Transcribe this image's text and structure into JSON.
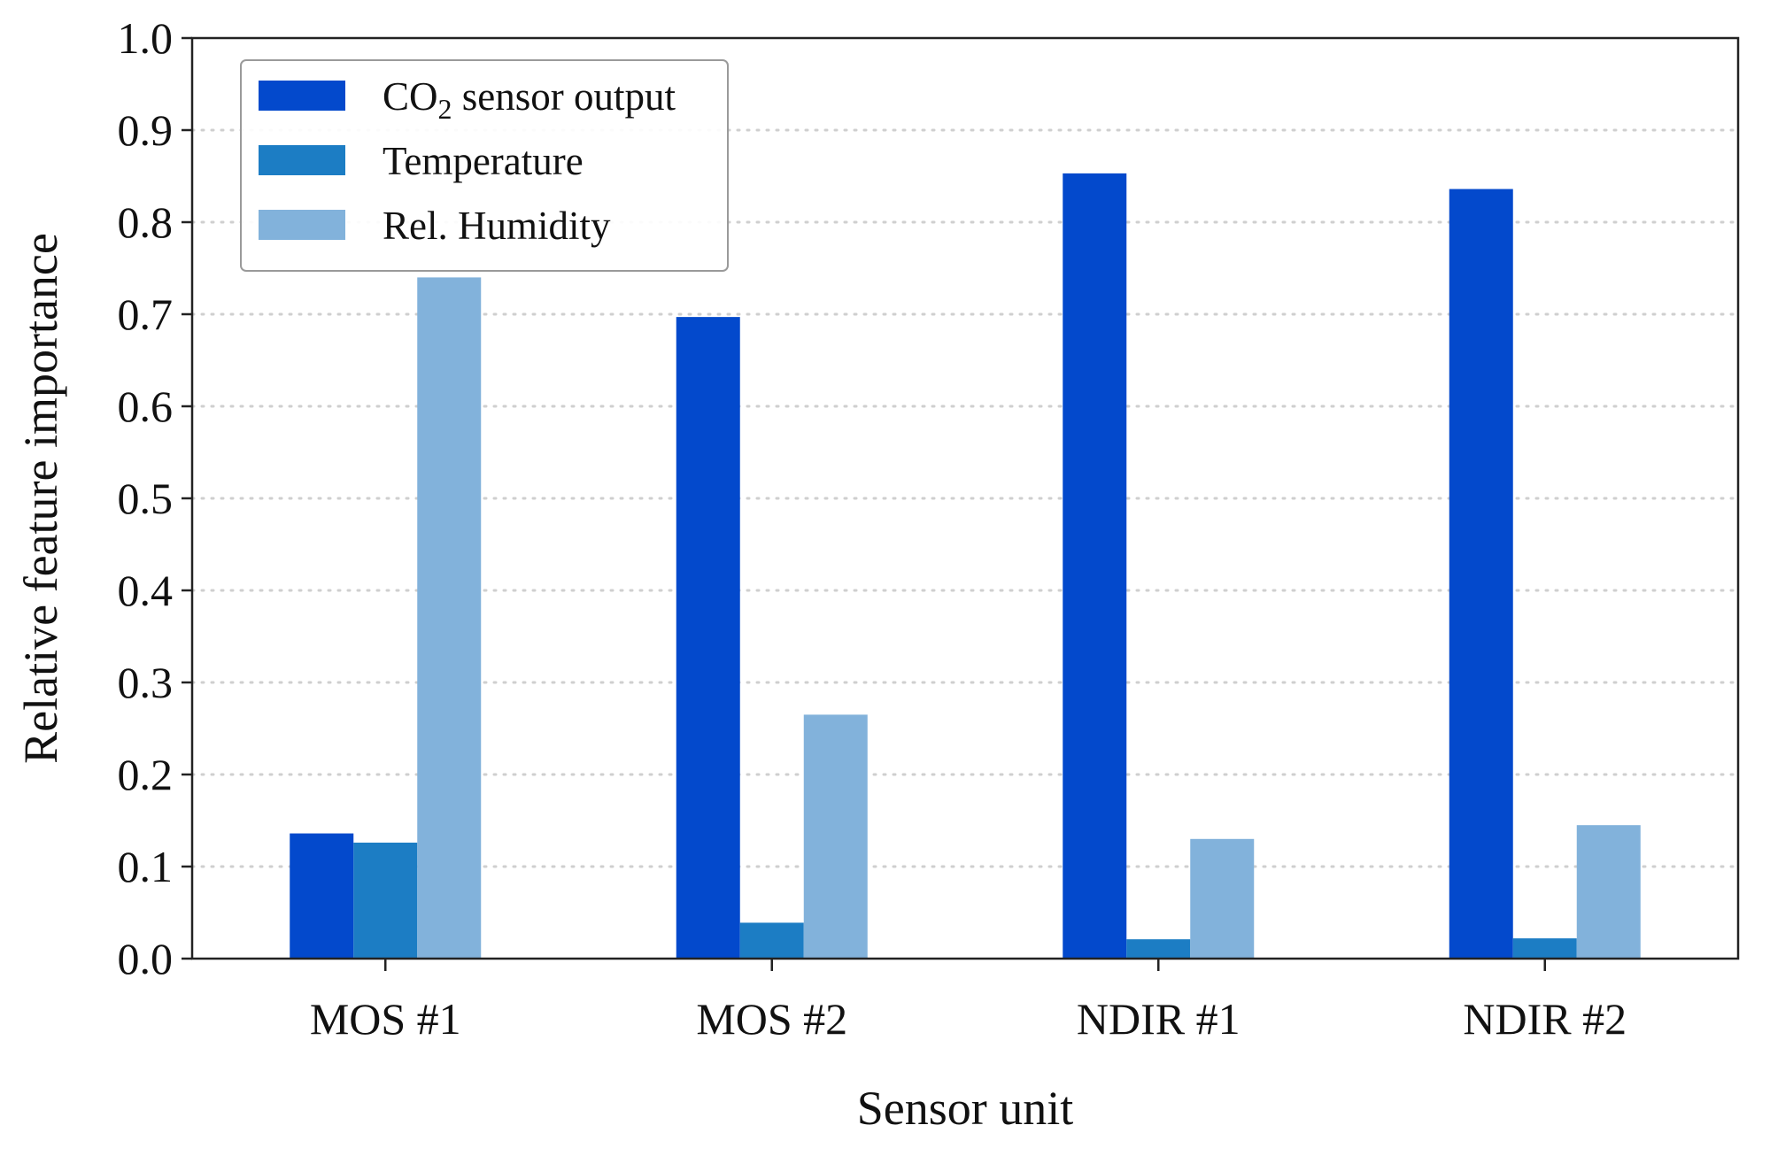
{
  "chart_data": {
    "type": "bar",
    "title": "",
    "xlabel": "Sensor unit",
    "ylabel": "Relative feature importance",
    "categories": [
      "MOS #1",
      "MOS #2",
      "NDIR #1",
      "NDIR #2"
    ],
    "ylim": [
      0.0,
      1.0
    ],
    "yticks": [
      "0.0",
      "0.1",
      "0.2",
      "0.3",
      "0.4",
      "0.5",
      "0.6",
      "0.7",
      "0.8",
      "0.9",
      "1.0"
    ],
    "grid": "horizontal dotted",
    "legend_position": "top-left",
    "series": [
      {
        "name": "CO2 sensor output",
        "legend_main": "CO",
        "legend_sub": "2",
        "legend_rest": " sensor output",
        "color": "#0349cc",
        "values": [
          0.136,
          0.697,
          0.853,
          0.836
        ]
      },
      {
        "name": "Temperature",
        "legend_main": "Temperature",
        "legend_sub": "",
        "legend_rest": "",
        "color": "#1c7dc4",
        "values": [
          0.126,
          0.039,
          0.021,
          0.022
        ]
      },
      {
        "name": "Rel. Humidity",
        "legend_main": "Rel. Humidity",
        "legend_sub": "",
        "legend_rest": "",
        "color": "#82b2db",
        "values": [
          0.74,
          0.265,
          0.13,
          0.145
        ]
      }
    ]
  }
}
